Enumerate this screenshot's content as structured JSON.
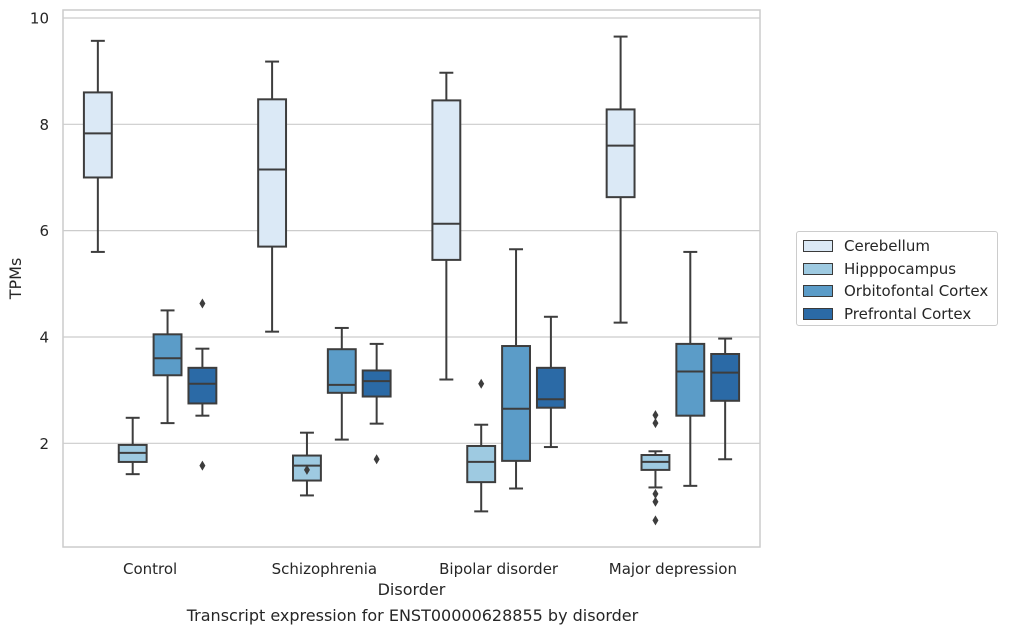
{
  "caption": "Transcript expression for ENST00000628855 by disorder",
  "chart_data": {
    "type": "boxplot",
    "xlabel": "Disorder",
    "ylabel": "TPMs",
    "ylim": [
      0.05,
      10.15
    ],
    "yticks": [
      2,
      4,
      6,
      8,
      10
    ],
    "grid": "horizontal",
    "legend_position": "right",
    "categories": [
      "Control",
      "Schizophrenia",
      "Bipolar disorder",
      "Major depression"
    ],
    "series": [
      {
        "name": "Cerebellum",
        "color": "#dbe9f6",
        "boxes": [
          {
            "whislo": 5.6,
            "q1": 7.0,
            "median": 7.83,
            "q3": 8.6,
            "whishi": 9.57,
            "fliers": []
          },
          {
            "whislo": 4.1,
            "q1": 5.7,
            "median": 7.15,
            "q3": 8.47,
            "whishi": 9.18,
            "fliers": []
          },
          {
            "whislo": 3.2,
            "q1": 5.45,
            "median": 6.13,
            "q3": 8.45,
            "whishi": 8.97,
            "fliers": []
          },
          {
            "whislo": 4.27,
            "q1": 6.63,
            "median": 7.6,
            "q3": 8.28,
            "whishi": 9.65,
            "fliers": []
          }
        ]
      },
      {
        "name": "Hipppocampus",
        "color": "#9ecae1",
        "boxes": [
          {
            "whislo": 1.42,
            "q1": 1.65,
            "median": 1.82,
            "q3": 1.97,
            "whishi": 2.48,
            "fliers": []
          },
          {
            "whislo": 1.02,
            "q1": 1.3,
            "median": 1.58,
            "q3": 1.77,
            "whishi": 2.2,
            "fliers": [
              1.5
            ]
          },
          {
            "whislo": 0.72,
            "q1": 1.27,
            "median": 1.65,
            "q3": 1.95,
            "whishi": 2.35,
            "fliers": [
              3.12
            ]
          },
          {
            "whislo": 1.17,
            "q1": 1.5,
            "median": 1.65,
            "q3": 1.78,
            "whishi": 1.85,
            "fliers": [
              2.53,
              2.38,
              1.05,
              0.9,
              0.55
            ]
          }
        ]
      },
      {
        "name": "Orbitofontal Cortex",
        "color": "#5b9cc8",
        "boxes": [
          {
            "whislo": 2.38,
            "q1": 3.28,
            "median": 3.6,
            "q3": 4.05,
            "whishi": 4.5,
            "fliers": []
          },
          {
            "whislo": 2.07,
            "q1": 2.95,
            "median": 3.1,
            "q3": 3.77,
            "whishi": 4.17,
            "fliers": []
          },
          {
            "whislo": 1.15,
            "q1": 1.67,
            "median": 2.65,
            "q3": 3.83,
            "whishi": 5.65,
            "fliers": []
          },
          {
            "whislo": 1.2,
            "q1": 2.52,
            "median": 3.35,
            "q3": 3.87,
            "whishi": 5.6,
            "fliers": []
          }
        ]
      },
      {
        "name": "Prefrontal Cortex",
        "color": "#2b6aa6",
        "boxes": [
          {
            "whislo": 2.52,
            "q1": 2.75,
            "median": 3.12,
            "q3": 3.42,
            "whishi": 3.78,
            "fliers": [
              4.63,
              1.58
            ]
          },
          {
            "whislo": 2.37,
            "q1": 2.88,
            "median": 3.17,
            "q3": 3.37,
            "whishi": 3.87,
            "fliers": [
              1.7
            ]
          },
          {
            "whislo": 1.93,
            "q1": 2.67,
            "median": 2.83,
            "q3": 3.42,
            "whishi": 4.38,
            "fliers": []
          },
          {
            "whislo": 1.7,
            "q1": 2.8,
            "median": 3.33,
            "q3": 3.68,
            "whishi": 3.97,
            "fliers": []
          }
        ]
      }
    ]
  }
}
